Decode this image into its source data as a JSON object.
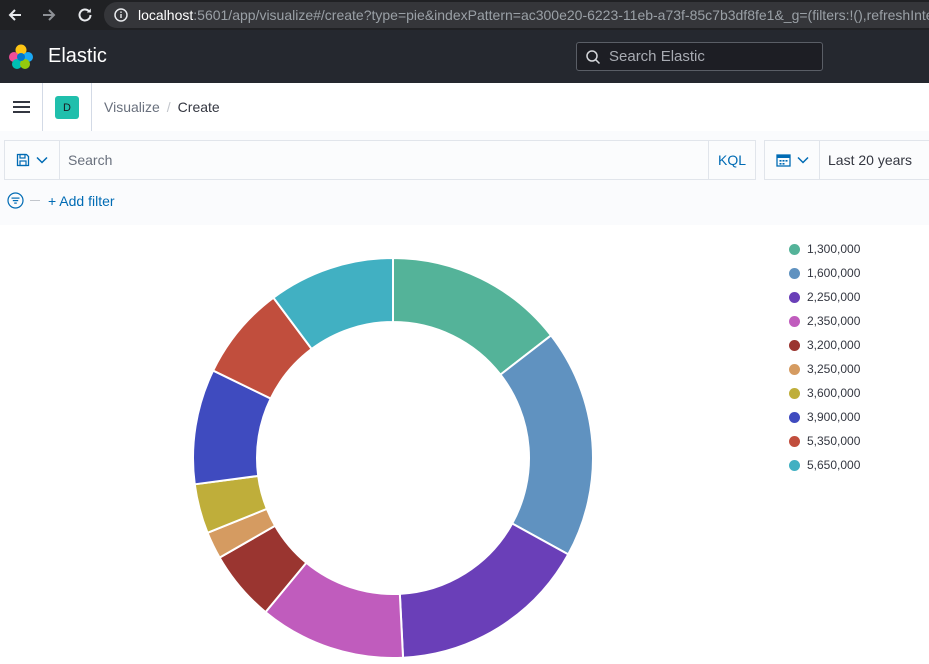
{
  "browser": {
    "url_host": "localhost",
    "url_rest": ":5601/app/visualize#/create?type=pie&indexPattern=ac300e20-6223-11eb-a73f-85c7b3df8fe1&_g=(filters:!(),refreshInte"
  },
  "header": {
    "brand": "Elastic",
    "search_placeholder": "Search Elastic"
  },
  "space": {
    "initial": "D",
    "color": "#20bfac"
  },
  "breadcrumb": {
    "parent": "Visualize",
    "current": "Create"
  },
  "query": {
    "placeholder": "Search",
    "language": "KQL",
    "date_range": "Last 20 years",
    "add_filter": "+ Add filter"
  },
  "chart_data": {
    "type": "pie",
    "donut": true,
    "legend_position": "right",
    "categories": [
      "1,300,000",
      "1,600,000",
      "2,250,000",
      "2,350,000",
      "3,200,000",
      "3,250,000",
      "3,600,000",
      "3,900,000",
      "5,350,000",
      "5,650,000"
    ],
    "values": [
      14.5,
      18.5,
      16.2,
      11.8,
      5.7,
      2.2,
      4.0,
      9.3,
      7.6,
      10.2
    ],
    "colors": [
      "#54b399",
      "#6092c0",
      "#6a3fb8",
      "#c05cbd",
      "#9a3530",
      "#d59b61",
      "#bfae3a",
      "#3f4bbf",
      "#c14e3d",
      "#41b0c2"
    ]
  }
}
